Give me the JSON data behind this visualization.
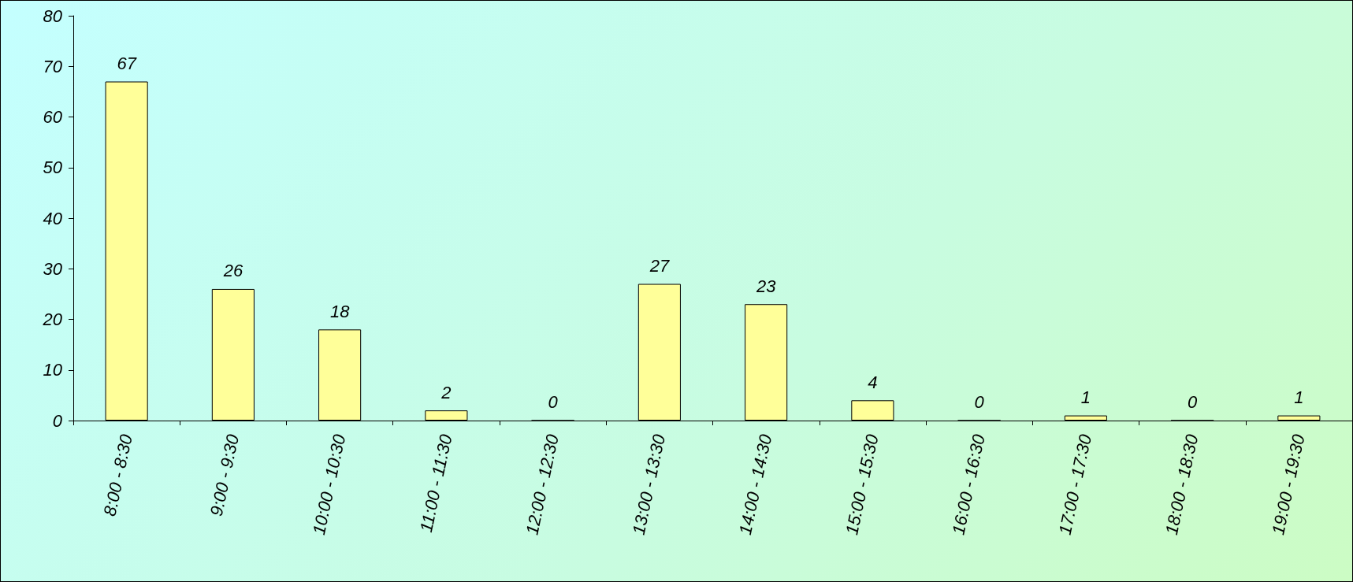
{
  "chart_data": {
    "type": "bar",
    "categories": [
      "8:00 - 8:30",
      "9:00 - 9:30",
      "10:00 - 10:30",
      "11:00 - 11:30",
      "12:00 - 12:30",
      "13:00 - 13:30",
      "14:00 - 14:30",
      "15:00 - 15:30",
      "16:00 - 16:30",
      "17:00 - 17:30",
      "18:00 - 18:30",
      "19:00 - 19:30"
    ],
    "values": [
      67,
      26,
      18,
      2,
      0,
      27,
      23,
      4,
      0,
      1,
      0,
      1
    ],
    "color": "#ffff99",
    "ylim": [
      0,
      80
    ],
    "yticks": [
      0,
      10,
      20,
      30,
      40,
      50,
      60,
      70,
      80
    ],
    "grid": false,
    "data_labels": true
  }
}
